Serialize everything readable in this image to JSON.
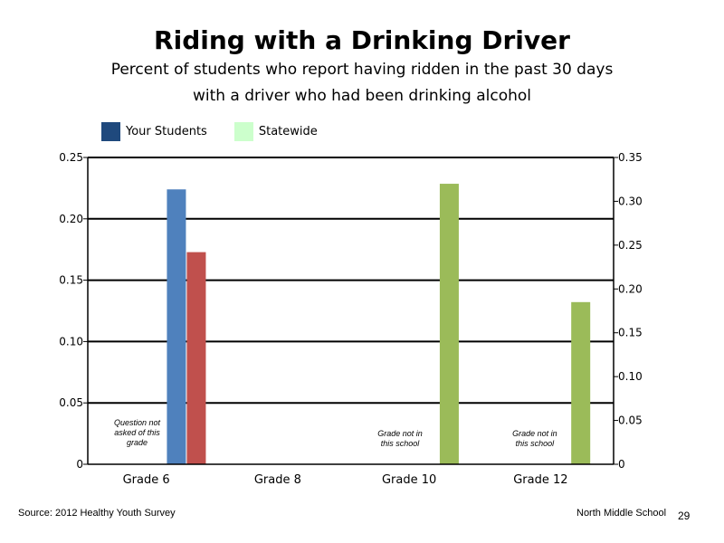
{
  "chart_data": {
    "type": "bar",
    "title": "Riding with a Drinking Driver",
    "subtitle_lines": [
      "Percent of students who report having ridden in the past 30 days",
      "with a driver who had been drinking alcohol"
    ],
    "categories": [
      "Grade 6",
      "Grade 8",
      "Grade 10",
      "Grade 12"
    ],
    "series": [
      {
        "name": "Your Students",
        "axis": "left",
        "values": [
          null,
          0.224,
          null,
          null
        ],
        "color": "#4f81bd"
      },
      {
        "name": "",
        "axis": "right",
        "values": [
          null,
          0.242,
          null,
          null
        ],
        "color": "#c0504d"
      },
      {
        "name": "",
        "axis": "right",
        "values": [
          null,
          null,
          0.32,
          0.185
        ],
        "color": "#9bbb59"
      }
    ],
    "legend": [
      {
        "label": "Your Students",
        "color": "#1f497d"
      },
      {
        "label": "Statewide",
        "color": "#ccffcc"
      }
    ],
    "legend_position": "top-left",
    "left_axis": {
      "ylim": [
        0,
        0.25
      ],
      "ticks": [
        "0",
        "0.05",
        "0.10",
        "0.15",
        "0.20",
        "0.25"
      ]
    },
    "right_axis": {
      "ylim": [
        0,
        0.35
      ],
      "ticks": [
        "0",
        "0.05",
        "0.10",
        "0.15",
        "0.20",
        "0.25",
        "0.30",
        "0.35"
      ]
    },
    "grid": true,
    "annotations": [
      {
        "category": "Grade 6",
        "lines": [
          "Question not",
          "asked of this",
          "grade"
        ]
      },
      {
        "category": "slot-5",
        "lines": [
          "Grade not in",
          "this school"
        ]
      },
      {
        "category": "slot-7",
        "lines": [
          "Grade not in",
          "this school"
        ]
      }
    ]
  },
  "footer": {
    "source": "Source: 2012 Healthy Youth Survey",
    "school": "North Middle School",
    "page": "29"
  }
}
